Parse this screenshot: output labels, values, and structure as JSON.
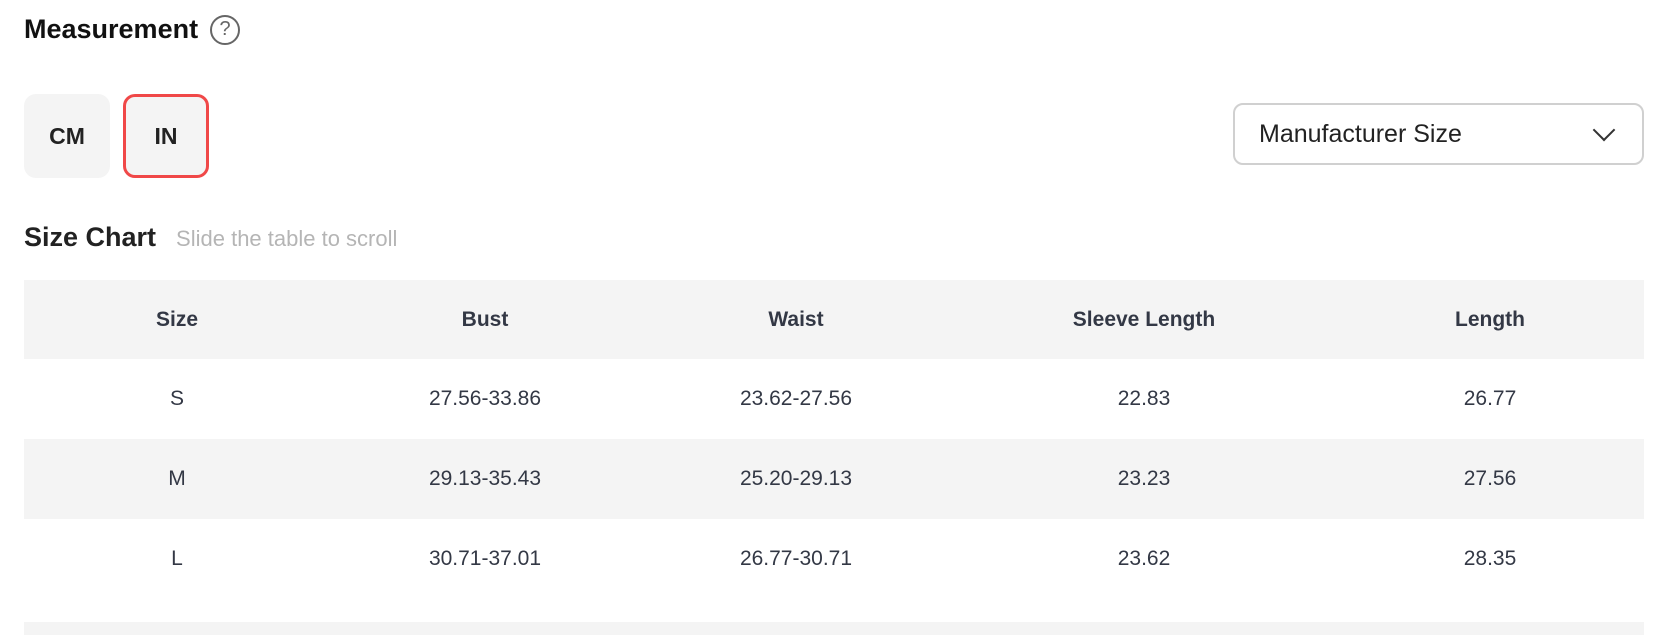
{
  "measurement": {
    "title": "Measurement",
    "help_icon": "question-circle-icon",
    "help_glyph": "?"
  },
  "units": {
    "options": [
      "CM",
      "IN"
    ],
    "selected": "IN",
    "accent": "#f04848"
  },
  "size_type": {
    "selected": "Manufacturer Size"
  },
  "size_chart": {
    "title": "Size Chart",
    "hint": "Slide the table to scroll",
    "headers": [
      "Size",
      "Bust",
      "Waist",
      "Sleeve Length",
      "Length"
    ],
    "rows": [
      [
        "S",
        "27.56-33.86",
        "23.62-27.56",
        "22.83",
        "26.77"
      ],
      [
        "M",
        "29.13-35.43",
        "25.20-29.13",
        "23.23",
        "27.56"
      ],
      [
        "L",
        "30.71-37.01",
        "26.77-30.71",
        "23.62",
        "28.35"
      ]
    ]
  }
}
